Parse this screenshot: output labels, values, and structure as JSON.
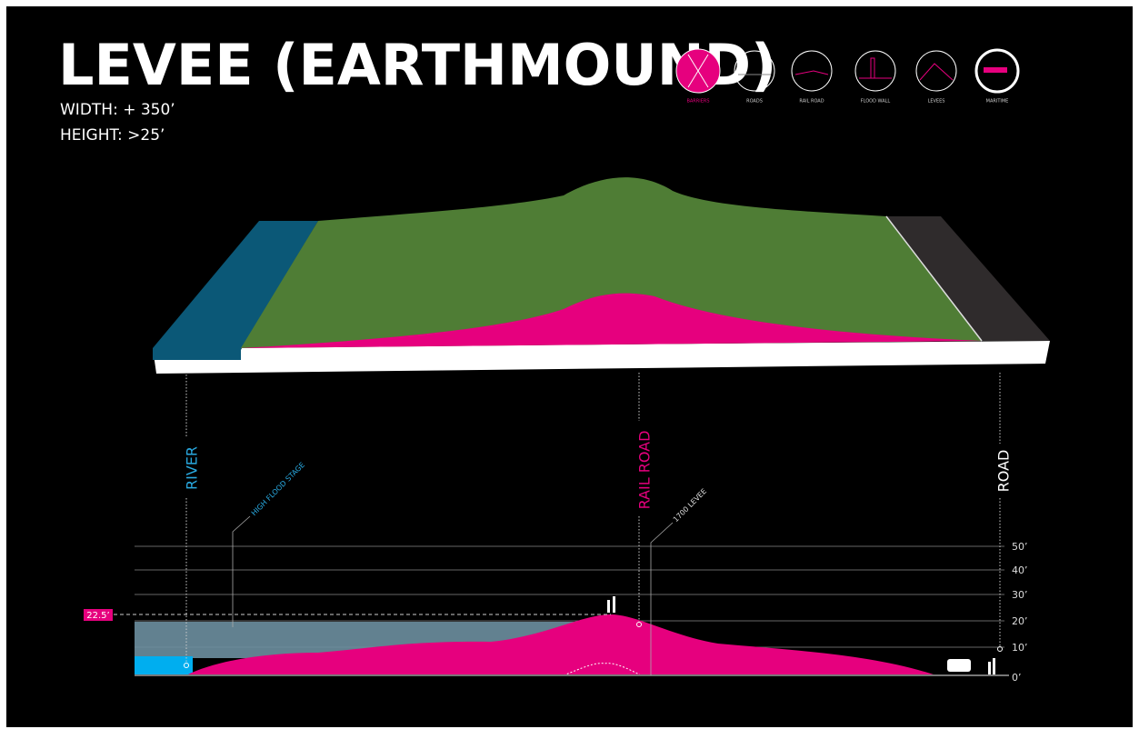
{
  "header": {
    "title": "LEVEE (EARTHMOUND)",
    "specs": [
      "WIDTH: + 350’",
      "HEIGHT: >25’"
    ]
  },
  "icons": [
    {
      "label": "BARRIERS"
    },
    {
      "label": "ROADS"
    },
    {
      "label": "RAIL ROAD"
    },
    {
      "label": "FLOOD WALL"
    },
    {
      "label": "LEVEES"
    },
    {
      "label": "MARITIME"
    }
  ],
  "section": {
    "labels": [
      "RIVER",
      "RAIL ROAD",
      "ROAD"
    ],
    "annotations": [
      "HIGH FLOOD STAGE",
      "1700 LEVEE"
    ],
    "elevations": [
      "50’",
      "40’",
      "30’",
      "20’",
      "10’",
      "0’"
    ],
    "marker": "22.5’"
  }
}
